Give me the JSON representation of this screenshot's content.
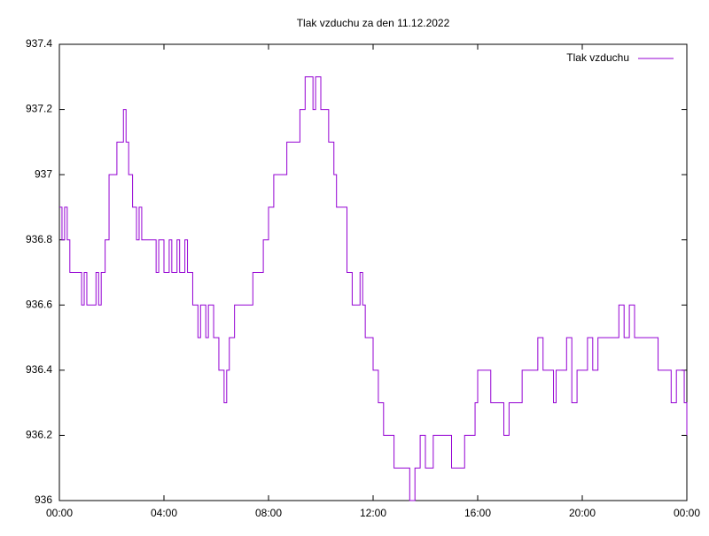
{
  "chart_data": {
    "type": "line",
    "title": "Tlak vzduchu za den 11.12.2022",
    "steps": true,
    "xlim": [
      0,
      24
    ],
    "xticks": [
      {
        "value": 0,
        "label": "00:00"
      },
      {
        "value": 4,
        "label": "04:00"
      },
      {
        "value": 8,
        "label": "08:00"
      },
      {
        "value": 12,
        "label": "12:00"
      },
      {
        "value": 16,
        "label": "16:00"
      },
      {
        "value": 20,
        "label": "20:00"
      },
      {
        "value": 24,
        "label": "00:00"
      }
    ],
    "ylim": [
      936,
      937.4
    ],
    "yticks": [
      936,
      936.2,
      936.4,
      936.6,
      936.8,
      937,
      937.2,
      937.4
    ],
    "legend": "top-right",
    "series": [
      {
        "name": "Tlak vzduchu",
        "color": "#9400d3",
        "x": [
          0,
          0.1,
          0.2,
          0.3,
          0.4,
          0.85,
          0.95,
          1.05,
          1.4,
          1.5,
          1.6,
          1.75,
          1.9,
          2.2,
          2.45,
          2.55,
          2.65,
          2.8,
          2.95,
          3.05,
          3.15,
          3.3,
          3.7,
          3.8,
          4.0,
          4.2,
          4.3,
          4.5,
          4.6,
          4.8,
          4.9,
          5.1,
          5.3,
          5.4,
          5.6,
          5.7,
          5.9,
          6.1,
          6.3,
          6.4,
          6.5,
          6.7,
          7.3,
          7.4,
          7.8,
          8.0,
          8.2,
          8.7,
          9.0,
          9.2,
          9.4,
          9.7,
          9.8,
          10.0,
          10.3,
          10.5,
          10.6,
          11.0,
          11.2,
          11.5,
          11.6,
          11.7,
          12.0,
          12.2,
          12.4,
          12.8,
          13.4,
          13.6,
          13.8,
          14.0,
          14.3,
          15.0,
          15.5,
          15.9,
          16.0,
          16.5,
          17.0,
          17.2,
          17.7,
          18.3,
          18.5,
          18.9,
          19.0,
          19.4,
          19.6,
          19.8,
          20.2,
          20.4,
          20.6,
          21.4,
          21.6,
          21.8,
          22.0,
          22.3,
          22.9,
          23.3,
          23.4,
          23.6,
          23.9,
          24.0
        ],
        "values": [
          936.9,
          936.8,
          936.9,
          936.8,
          936.7,
          936.6,
          936.7,
          936.6,
          936.7,
          936.6,
          936.7,
          936.8,
          937,
          937.1,
          937.2,
          937.1,
          937,
          936.9,
          936.8,
          936.9,
          936.8,
          936.8,
          936.7,
          936.8,
          936.7,
          936.8,
          936.7,
          936.8,
          936.7,
          936.8,
          936.7,
          936.6,
          936.5,
          936.6,
          936.5,
          936.6,
          936.5,
          936.4,
          936.3,
          936.4,
          936.5,
          936.6,
          936.6,
          936.7,
          936.8,
          936.9,
          937,
          937.1,
          937.1,
          937.2,
          937.3,
          937.2,
          937.3,
          937.2,
          937.1,
          937,
          936.9,
          936.7,
          936.6,
          936.7,
          936.6,
          936.5,
          936.4,
          936.3,
          936.2,
          936.1,
          936,
          936.1,
          936.2,
          936.1,
          936.2,
          936.1,
          936.2,
          936.3,
          936.4,
          936.3,
          936.2,
          936.3,
          936.4,
          936.5,
          936.4,
          936.3,
          936.4,
          936.5,
          936.3,
          936.4,
          936.5,
          936.4,
          936.5,
          936.6,
          936.5,
          936.6,
          936.5,
          936.5,
          936.4,
          936.4,
          936.3,
          936.4,
          936.3,
          936.2
        ]
      }
    ]
  }
}
